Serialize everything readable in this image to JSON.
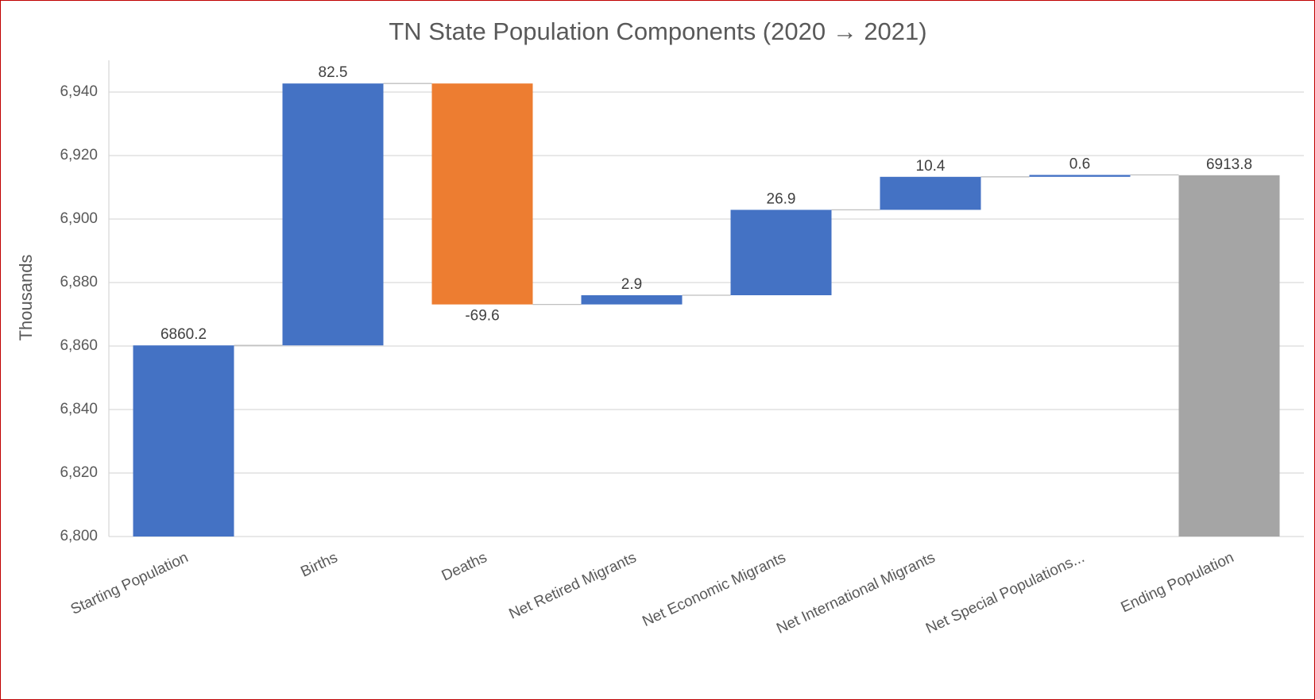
{
  "chart_data": {
    "type": "waterfall",
    "title": "TN State Population Components (2020 → 2021)",
    "y_label": "Thousands",
    "categories": [
      "Starting Population",
      "Births",
      "Deaths",
      "Net Retired Migrants",
      "Net Economic Migrants",
      "Net International Migrants",
      "Net Special Populations...",
      "Ending Population"
    ],
    "values": [
      6860.2,
      82.5,
      -69.6,
      2.9,
      26.9,
      10.4,
      0.6,
      6913.8
    ],
    "is_total": [
      true,
      false,
      false,
      false,
      false,
      false,
      false,
      true
    ],
    "colors": {
      "increase": "#4472c4",
      "decrease": "#ed7d31",
      "total": "#a5a5a5",
      "start": "#4472c4"
    },
    "ylim": [
      6800,
      6950
    ],
    "yticks": [
      {
        "value": 6800,
        "label": "6,800"
      },
      {
        "value": 6820,
        "label": "6,820"
      },
      {
        "value": 6840,
        "label": "6,840"
      },
      {
        "value": 6860,
        "label": "6,860"
      },
      {
        "value": 6880,
        "label": "6,880"
      },
      {
        "value": 6900,
        "label": "6,900"
      },
      {
        "value": 6920,
        "label": "6,920"
      },
      {
        "value": 6940,
        "label": "6,940"
      }
    ],
    "grid": true
  }
}
